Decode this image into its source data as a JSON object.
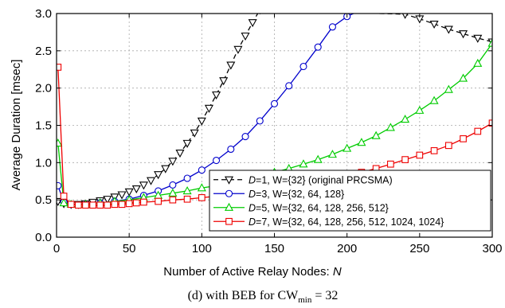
{
  "chart_data": {
    "type": "line",
    "xlabel": "Number of Active Relay Nodes:",
    "xlabel_var": "N",
    "ylabel": "Average Duration [msec]",
    "xlim": [
      0,
      300
    ],
    "ylim": [
      0,
      3.0
    ],
    "xticks": [
      0,
      50,
      100,
      150,
      200,
      250,
      300
    ],
    "yticks": [
      0,
      0.5,
      1.0,
      1.5,
      2.0,
      2.5,
      3.0
    ],
    "ytick_labels": [
      "0.0",
      "0.5",
      "1.0",
      "1.5",
      "2.0",
      "2.5",
      "3.0"
    ],
    "grid": true,
    "legend_position": "bottom-right",
    "caption": {
      "main": "(d) with BEB for CW",
      "sub": "min",
      "tail": " = 32"
    },
    "series": [
      {
        "legend_var": "D",
        "legend_rest": "=1, W={32}  (original PRCSMA)",
        "color": "#000000",
        "dashed": true,
        "marker": "triangle-down",
        "x": [
          1,
          5,
          10,
          15,
          20,
          25,
          30,
          35,
          40,
          45,
          50,
          55,
          60,
          65,
          70,
          75,
          80,
          85,
          90,
          95,
          100,
          105,
          110,
          115,
          120,
          125,
          130,
          135,
          140,
          240,
          250,
          260,
          270,
          280,
          290,
          300
        ],
        "y": [
          0.48,
          0.45,
          0.44,
          0.44,
          0.45,
          0.47,
          0.49,
          0.51,
          0.54,
          0.57,
          0.61,
          0.65,
          0.7,
          0.76,
          0.84,
          0.92,
          1.02,
          1.13,
          1.26,
          1.4,
          1.56,
          1.73,
          1.91,
          2.1,
          2.31,
          2.52,
          2.7,
          2.88,
          3.05,
          2.99,
          2.93,
          2.86,
          2.79,
          2.73,
          2.67,
          2.62
        ]
      },
      {
        "legend_var": "D",
        "legend_rest": "=3, W={32, 64, 128}",
        "color": "#0000cc",
        "dashed": false,
        "marker": "circle",
        "x": [
          1,
          5,
          10,
          20,
          30,
          40,
          50,
          60,
          70,
          80,
          90,
          100,
          110,
          120,
          130,
          140,
          150,
          160,
          170,
          180,
          190,
          200,
          210,
          220
        ],
        "y": [
          0.69,
          0.47,
          0.44,
          0.44,
          0.46,
          0.48,
          0.51,
          0.56,
          0.62,
          0.7,
          0.79,
          0.9,
          1.03,
          1.18,
          1.35,
          1.56,
          1.79,
          2.03,
          2.29,
          2.55,
          2.82,
          2.96,
          3.05,
          3.05
        ]
      },
      {
        "legend_var": "D",
        "legend_rest": "=5, W={32, 64, 128, 256, 512}",
        "color": "#00cc00",
        "dashed": false,
        "marker": "triangle-up",
        "x": [
          1,
          5,
          10,
          20,
          30,
          40,
          50,
          60,
          70,
          80,
          90,
          100,
          110,
          120,
          130,
          140,
          150,
          160,
          170,
          180,
          190,
          200,
          210,
          220,
          230,
          240,
          250,
          260,
          270,
          280,
          290,
          300
        ],
        "y": [
          1.26,
          0.46,
          0.44,
          0.44,
          0.46,
          0.48,
          0.5,
          0.53,
          0.56,
          0.59,
          0.62,
          0.66,
          0.69,
          0.73,
          0.78,
          0.82,
          0.87,
          0.92,
          0.98,
          1.04,
          1.11,
          1.19,
          1.27,
          1.36,
          1.47,
          1.58,
          1.7,
          1.83,
          1.98,
          2.13,
          2.33,
          2.6
        ]
      },
      {
        "legend_var": "D",
        "legend_rest": "=7, W={32, 64, 128, 256, 512, 1024, 1024}",
        "color": "#ee0000",
        "dashed": false,
        "marker": "square",
        "x": [
          1,
          5,
          10,
          15,
          20,
          25,
          30,
          35,
          40,
          45,
          50,
          55,
          60,
          70,
          80,
          90,
          100,
          110,
          120,
          130,
          140,
          150,
          160,
          170,
          180,
          190,
          200,
          210,
          220,
          230,
          240,
          250,
          260,
          270,
          280,
          290,
          300
        ],
        "y": [
          2.28,
          0.55,
          0.44,
          0.43,
          0.43,
          0.43,
          0.43,
          0.43,
          0.44,
          0.44,
          0.45,
          0.46,
          0.47,
          0.48,
          0.5,
          0.51,
          0.53,
          0.55,
          0.57,
          0.59,
          0.62,
          0.65,
          0.68,
          0.71,
          0.75,
          0.79,
          0.83,
          0.87,
          0.92,
          0.98,
          1.04,
          1.1,
          1.16,
          1.23,
          1.32,
          1.42,
          1.53
        ]
      }
    ]
  }
}
